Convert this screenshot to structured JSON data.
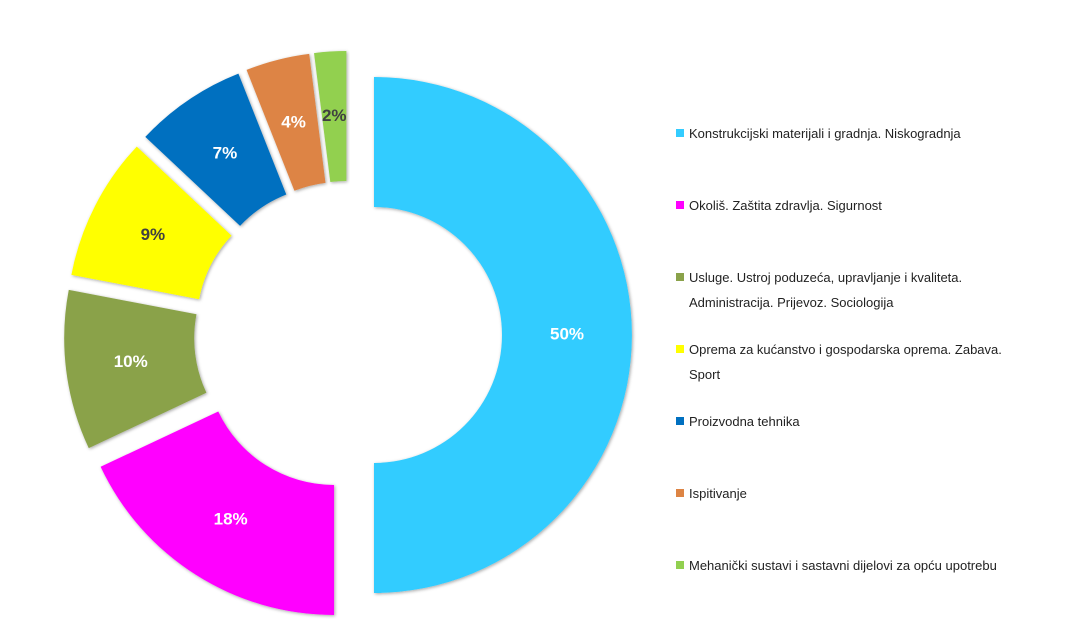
{
  "chart_data": {
    "type": "donut",
    "categories": [
      "Konstrukcijski materijali i gradnja. Niskogradnja",
      "Okoliš. Zaštita zdravlja. Sigurnost",
      "Usluge. Ustroj poduzeća, upravljanje i kvaliteta. Administracija. Prijevoz. Sociologija",
      "Oprema za kućanstvo i gospodarska oprema. Zabava. Sport",
      "Proizvodna tehnika",
      "Ispitivanje",
      "Mehanički sustavi i sastavni dijelovi za opću upotrebu"
    ],
    "values": [
      50,
      18,
      10,
      9,
      7,
      4,
      2
    ],
    "value_labels": [
      "50%",
      "18%",
      "10%",
      "9%",
      "7%",
      "4%",
      "2%"
    ],
    "colors": [
      "#33ccff",
      "#ff00ff",
      "#8aa24a",
      "#ffff00",
      "#0070c0",
      "#dd8444",
      "#92d050"
    ],
    "legend": "right"
  }
}
